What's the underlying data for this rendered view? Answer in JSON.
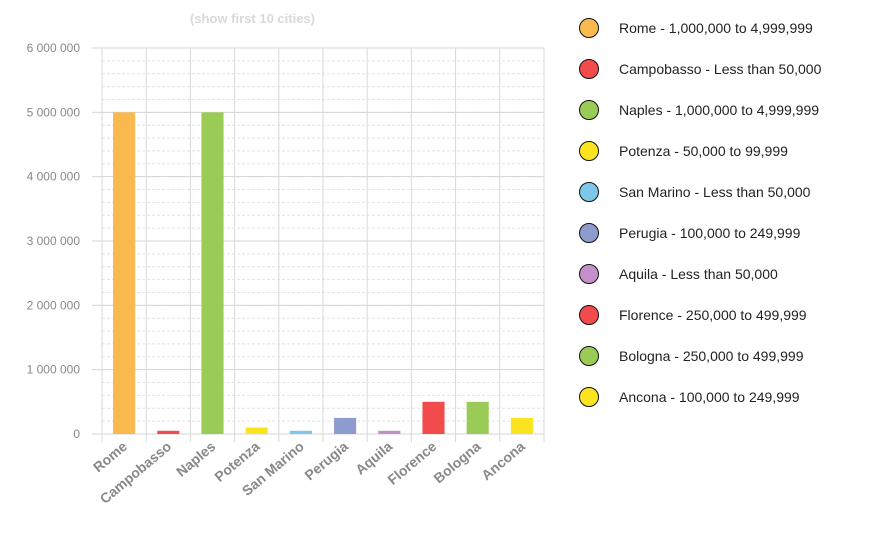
{
  "chart_data": {
    "type": "bar",
    "subtitle": "(show first 10 cities)",
    "categories": [
      "Rome",
      "Campobasso",
      "Naples",
      "Potenza",
      "San Marino",
      "Perugia",
      "Aquila",
      "Florence",
      "Bologna",
      "Ancona"
    ],
    "values": [
      4999999,
      49999,
      4999999,
      99999,
      49999,
      249999,
      49999,
      499999,
      499999,
      249999
    ],
    "colors": [
      "#F9B94F",
      "#F24B4B",
      "#9BCB57",
      "#FBE41F",
      "#7DC7E8",
      "#8E9BCE",
      "#C58FC9",
      "#F24B4B",
      "#9BCB57",
      "#FBE41F"
    ],
    "ylim": [
      0,
      6000000
    ],
    "yticks": [
      0,
      1000000,
      2000000,
      3000000,
      4000000,
      5000000,
      6000000
    ],
    "ytick_labels": [
      "0",
      "1 000 000",
      "2 000 000",
      "3 000 000",
      "4 000 000",
      "5 000 000",
      "6 000 000"
    ],
    "grid": true,
    "legend_position": "right",
    "legend": [
      "Rome - 1,000,000 to 4,999,999",
      "Campobasso - Less than 50,000",
      "Naples - 1,000,000 to 4,999,999",
      "Potenza - 50,000 to 99,999",
      "San Marino - Less than 50,000",
      "Perugia - 100,000 to 249,999",
      "Aquila - Less than 50,000",
      "Florence - 250,000 to 499,999",
      "Bologna - 250,000 to 499,999",
      "Ancona - 100,000 to 249,999"
    ]
  }
}
